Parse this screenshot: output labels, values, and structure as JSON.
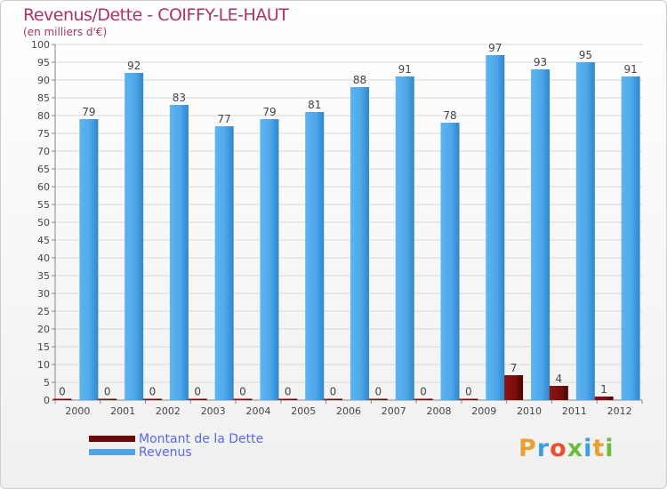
{
  "header": {
    "title": "Revenus/Dette - COIFFY-LE-HAUT",
    "subtitle": "(en milliers d'€)"
  },
  "legend": {
    "items": [
      {
        "label": "Montant de la Dette",
        "color": "#7a0c0c"
      },
      {
        "label": "Revenus",
        "color": "#4da6e8"
      }
    ]
  },
  "logo": {
    "letters": [
      "P",
      "r",
      "o",
      "x",
      "i",
      "t",
      "i"
    ],
    "colors": [
      "#e8a030",
      "#3ca0e0",
      "#e85030",
      "#6abf3a",
      "#3ca0e0",
      "#e8a030",
      "#6abf3a"
    ]
  },
  "chart_data": {
    "type": "bar",
    "title": "Revenus/Dette - COIFFY-LE-HAUT",
    "ylabel": "(en milliers d'€)",
    "xlabel": "",
    "categories": [
      "2000",
      "2001",
      "2002",
      "2003",
      "2004",
      "2005",
      "2006",
      "2007",
      "2008",
      "2009",
      "2010",
      "2011",
      "2012"
    ],
    "ylim": [
      0,
      100
    ],
    "yticks": [
      0,
      5,
      10,
      15,
      20,
      25,
      30,
      35,
      40,
      45,
      50,
      55,
      60,
      65,
      70,
      75,
      80,
      85,
      90,
      95,
      100
    ],
    "grid": true,
    "legend_position": "bottom-left",
    "series": [
      {
        "name": "Montant de la Dette",
        "color": "#7a0c0c",
        "values": [
          0,
          0,
          0,
          0,
          0,
          0,
          0,
          0,
          0,
          0,
          7,
          4,
          1
        ]
      },
      {
        "name": "Revenus",
        "color": "#4da6e8",
        "values": [
          79,
          92,
          83,
          77,
          79,
          81,
          88,
          91,
          78,
          97,
          93,
          95,
          91
        ]
      }
    ]
  }
}
